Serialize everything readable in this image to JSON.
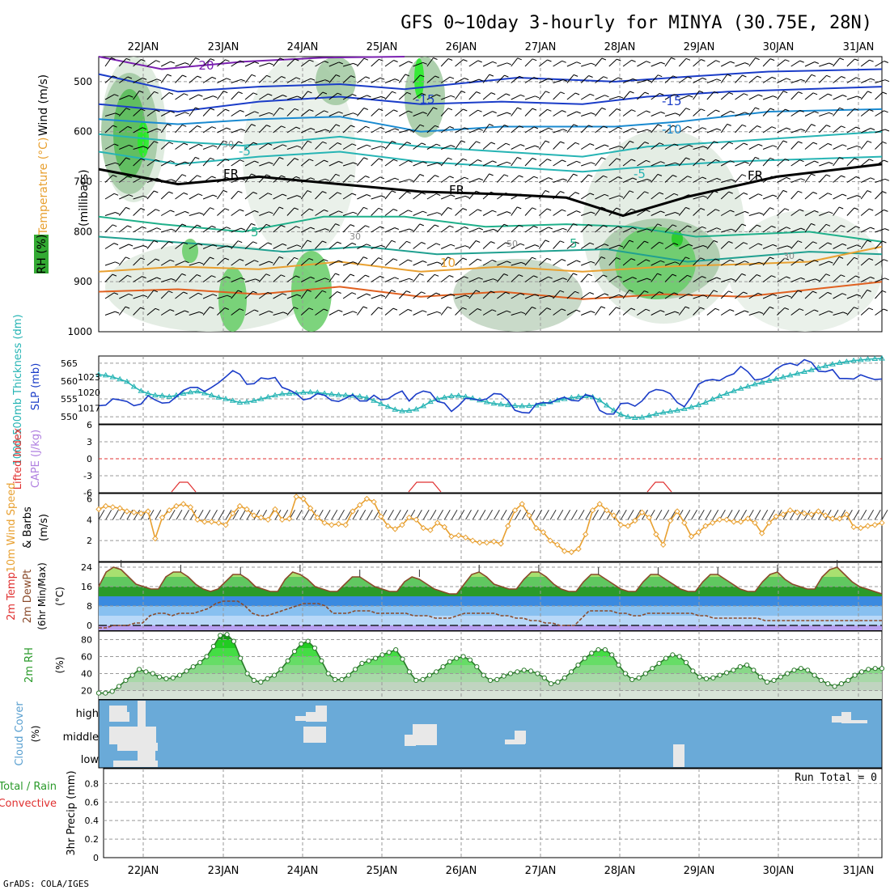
{
  "title": "GFS 0~10day 3-hourly for MINYA (30.75E, 28N)",
  "footer": "GrADS: COLA/IGES",
  "run_total_label": "Run Total = 0",
  "colors": {
    "blue": "#1a3cc8",
    "cyan": "#26b4b4",
    "orange": "#e8a030",
    "red": "#e03030",
    "green": "#2a9a2a",
    "purple": "#b080e0",
    "brown": "#8a4a2a",
    "cloudbg": "#6aaad8"
  },
  "chart_data": [
    {
      "panel": "upper-air",
      "type": "heatmap",
      "title": "",
      "ylabel_parts": [
        "RH (%)",
        "Temperature (°C)",
        "Wind (m/s)"
      ],
      "ylabel_units": "(millibars)",
      "y_ticks": [
        "500",
        "600",
        "700",
        "800",
        "900",
        "1000"
      ],
      "ylim": [
        450,
        1000
      ],
      "x_ticks": [
        "22JAN",
        "23JAN",
        "24JAN",
        "25JAN",
        "26JAN",
        "27JAN",
        "28JAN",
        "29JAN",
        "30JAN",
        "31JAN"
      ],
      "contour_labels": [
        "-20",
        "-15",
        "-15",
        "-10",
        "-5",
        "-5",
        "FR",
        "FR",
        "FR",
        "5",
        "5",
        "10",
        "30",
        "30",
        "30",
        "50"
      ],
      "isotherm_legend": [
        "-20",
        "-15",
        "-10",
        "-5",
        "FR",
        "5",
        "10"
      ]
    },
    {
      "panel": "slp-thickness",
      "type": "line",
      "ylabel_left": "1000-500mb Thickness (dm)",
      "ylabel_right": "SLP (mb)",
      "left_ticks": [
        "550",
        "555",
        "560",
        "565"
      ],
      "right_ticks": [
        "1017",
        "1020",
        "1023"
      ],
      "series": [
        {
          "name": "SLP (mb)",
          "values": [
            1017.5,
            1017.6,
            1018.8,
            1018.6,
            1018.3,
            1017.5,
            1017.8,
            1019.4,
            1018.6,
            1018.0,
            1018.1,
            1019.2,
            1020.4,
            1021.0,
            1021.0,
            1020.2,
            1021.0,
            1021.9,
            1023.0,
            1024.2,
            1023.5,
            1021.6,
            1021.7,
            1022.8,
            1022.6,
            1022.9,
            1021.0,
            1020.5,
            1019.8,
            1018.6,
            1018.9,
            1019.8,
            1019.5,
            1018.5,
            1018.3,
            1018.9,
            1019.6,
            1018.4,
            1018.4,
            1019.5,
            1018.6,
            1018.8,
            1019.7,
            1020.3,
            1018.4,
            1019.7,
            1020.3,
            1020.0,
            1018.3,
            1018.0,
            1016.4,
            1017.5,
            1018.9,
            1018.8,
            1018.5,
            1018.8,
            1019.8,
            1019.7,
            1018.5,
            1016.6,
            1016.2,
            1016.1,
            1017.8,
            1018.1,
            1018.0,
            1018.7,
            1019.1,
            1018.5,
            1018.4,
            1019.6,
            1019.3,
            1016.6,
            1015.9,
            1015.9,
            1017.9,
            1018.0,
            1017.4,
            1018.4,
            1020.0,
            1020.6,
            1020.4,
            1019.8,
            1018.1,
            1017.3,
            1019.2,
            1021.6,
            1022.3,
            1022.5,
            1022.3,
            1023.1,
            1023.6,
            1025.0,
            1024.0,
            1022.4,
            1022.6,
            1023.2,
            1024.5,
            1025.3,
            1025.6,
            1025.2,
            1026.3,
            1025.8,
            1024.1,
            1024.0,
            1024.4,
            1022.7,
            1022.7,
            1022.6,
            1023.4,
            1022.9,
            1022.5,
            1022.6
          ]
        },
        {
          "name": "1000-500mb Thickness (dm)",
          "values": [
            561.8,
            561.6,
            561.1,
            560.5,
            559.8,
            558.4,
            557.2,
            556.5,
            556.0,
            555.9,
            555.6,
            556.0,
            556.5,
            556.9,
            557.1,
            556.6,
            556.0,
            555.4,
            555.0,
            554.5,
            554.0,
            554.1,
            554.5,
            555.0,
            555.5,
            556.0,
            556.4,
            556.5,
            556.6,
            556.8,
            556.9,
            556.8,
            556.5,
            556.3,
            556.1,
            556.0,
            555.9,
            555.7,
            555.3,
            554.5,
            553.6,
            552.8,
            552.0,
            551.6,
            551.7,
            552.1,
            553.0,
            554.2,
            555.0,
            555.4,
            555.8,
            555.9,
            555.6,
            555.2,
            554.6,
            554.1,
            553.7,
            553.5,
            553.3,
            553.1,
            553.0,
            553.1,
            553.2,
            553.6,
            554.1,
            554.6,
            555.0,
            555.3,
            555.6,
            555.8,
            555.5,
            554.6,
            553.2,
            551.8,
            550.7,
            550.0,
            549.7,
            549.8,
            550.3,
            550.8,
            551.2,
            551.5,
            551.8,
            552.2,
            552.7,
            553.3,
            554.0,
            554.9,
            555.8,
            556.5,
            557.2,
            557.9,
            558.5,
            559.1,
            559.6,
            560.1,
            560.6,
            561.1,
            561.6,
            562.1,
            562.6,
            563.1,
            563.7,
            564.2,
            564.7,
            565.1,
            565.4,
            565.7,
            565.9,
            566.1,
            566.2,
            566.3
          ]
        }
      ]
    },
    {
      "panel": "stability",
      "type": "line",
      "ylabel_parts": [
        "Lifted Index",
        "CAPE (J/kg)"
      ],
      "y_ticks": [
        "6",
        "3",
        "0",
        "-3",
        "-6"
      ],
      "ylim": [
        -6,
        6
      ]
    },
    {
      "panel": "wind10m",
      "type": "line",
      "ylabel_parts": [
        "10m Wind Speed",
        "& Barbs"
      ],
      "ylabel_units": "(m/s)",
      "y_ticks": [
        "2",
        "4",
        "6"
      ],
      "ylim": [
        0,
        6.5
      ],
      "series": [
        {
          "name": "10m wind speed (m/s)",
          "values": [
            5.0,
            5.3,
            5.2,
            5.1,
            4.8,
            4.7,
            4.6,
            4.8,
            2.2,
            4.2,
            4.9,
            5.3,
            5.5,
            5.2,
            4.0,
            3.8,
            3.8,
            3.7,
            3.5,
            4.6,
            5.3,
            5.0,
            4.4,
            4.2,
            4.0,
            5.0,
            4.0,
            4.1,
            6.2,
            6.0,
            5.1,
            4.2,
            3.7,
            3.5,
            3.6,
            3.5,
            4.8,
            5.4,
            6.0,
            5.7,
            4.3,
            3.4,
            3.1,
            3.5,
            4.2,
            4.0,
            3.2,
            3.0,
            3.7,
            3.3,
            2.4,
            2.5,
            2.3,
            2.0,
            1.8,
            1.8,
            1.9,
            1.7,
            3.4,
            4.9,
            5.5,
            4.4,
            3.2,
            2.8,
            2.0,
            1.6,
            1.0,
            0.9,
            1.2,
            2.6,
            4.9,
            5.5,
            4.9,
            4.4,
            3.5,
            3.4,
            3.9,
            4.7,
            4.2,
            2.6,
            1.6,
            3.9,
            4.8,
            3.7,
            2.4,
            2.8,
            3.4,
            3.7,
            4.0,
            4.0,
            3.8,
            3.8,
            4.1,
            3.7,
            2.7,
            3.7,
            4.3,
            4.5,
            4.9,
            4.7,
            4.6,
            4.5,
            4.8,
            4.4,
            4.1,
            4.1,
            4.5,
            3.3,
            3.2,
            3.4,
            3.5,
            3.7
          ]
        }
      ]
    },
    {
      "panel": "temp2m",
      "type": "area",
      "ylabel_parts": [
        "2m Temp",
        "2m DewPt",
        "(6hr Min/Max)"
      ],
      "ylabel_units": "(°C)",
      "y_ticks": [
        "0",
        "8",
        "16",
        "24"
      ],
      "ylim": [
        -2,
        26
      ],
      "series": [
        {
          "name": "2m Temp (°C)",
          "values": [
            16,
            22,
            24,
            23,
            20,
            17,
            16,
            15,
            15,
            20,
            22,
            22,
            20,
            17,
            15,
            14,
            15,
            18,
            21,
            21,
            19,
            16,
            15,
            14,
            14,
            19,
            22,
            21,
            19,
            16,
            15,
            14,
            14,
            17,
            20,
            20,
            18,
            16,
            15,
            14,
            14,
            18,
            20,
            19,
            17,
            15,
            14,
            13,
            13,
            17,
            21,
            22,
            20,
            17,
            16,
            15,
            15,
            19,
            22,
            22,
            20,
            17,
            15,
            14,
            14,
            18,
            21,
            21,
            19,
            17,
            15,
            14,
            14,
            18,
            21,
            21,
            19,
            17,
            15,
            14,
            14,
            18,
            21,
            21,
            19,
            17,
            15,
            14,
            14,
            18,
            21,
            22,
            19,
            17,
            16,
            15,
            15,
            20,
            23,
            24,
            21,
            18,
            16,
            15,
            14,
            13
          ]
        },
        {
          "name": "2m DewPt (°C)",
          "values": [
            -1,
            -1,
            0,
            0,
            0,
            1,
            1,
            4,
            5,
            5,
            4,
            5,
            5,
            5,
            6,
            7,
            9,
            10,
            10,
            10,
            8,
            5,
            4,
            4,
            5,
            6,
            7,
            8,
            9,
            9,
            9,
            8,
            5,
            5,
            5,
            6,
            6,
            6,
            5,
            5,
            5,
            5,
            5,
            4,
            4,
            4,
            3,
            3,
            3,
            4,
            5,
            5,
            5,
            5,
            5,
            4,
            4,
            3,
            3,
            2,
            2,
            1,
            1,
            0,
            0,
            0,
            3,
            6,
            6,
            6,
            6,
            5,
            5,
            4,
            4,
            5,
            5,
            5,
            5,
            5,
            5,
            5,
            4,
            4,
            3,
            3,
            3,
            3,
            3,
            3,
            3,
            2,
            2,
            2,
            2,
            2,
            2,
            2,
            2,
            2,
            2,
            2,
            2,
            2,
            2,
            2,
            2,
            2
          ]
        }
      ]
    },
    {
      "panel": "rh2m",
      "type": "area",
      "ylabel": "2m RH",
      "ylabel_units": "(%)",
      "y_ticks": [
        "20",
        "40",
        "60",
        "80"
      ],
      "ylim": [
        10,
        90
      ],
      "series": [
        {
          "name": "2m RH (%)",
          "values": [
            17,
            17,
            19,
            25,
            32,
            38,
            45,
            42,
            40,
            36,
            34,
            35,
            38,
            43,
            48,
            53,
            60,
            72,
            85,
            86,
            78,
            58,
            40,
            32,
            30,
            34,
            38,
            45,
            55,
            66,
            75,
            78,
            70,
            55,
            40,
            33,
            33,
            38,
            45,
            52,
            55,
            58,
            62,
            65,
            68,
            57,
            42,
            32,
            33,
            38,
            42,
            48,
            54,
            58,
            60,
            56,
            48,
            38,
            32,
            33,
            37,
            40,
            42,
            44,
            43,
            40,
            35,
            28,
            30,
            35,
            42,
            50,
            58,
            64,
            68,
            68,
            62,
            50,
            40,
            33,
            35,
            40,
            46,
            52,
            58,
            62,
            60,
            53,
            43,
            36,
            34,
            35,
            38,
            41,
            44,
            48,
            50,
            44,
            36,
            30,
            32,
            36,
            40,
            44,
            46,
            44,
            38,
            32,
            28,
            25,
            28,
            32,
            38,
            42,
            45,
            46,
            46
          ]
        }
      ]
    },
    {
      "panel": "cloud",
      "type": "bar",
      "ylabel": "Cloud Cover",
      "ylabel_units": "(%)",
      "levels": [
        "high",
        "middle",
        "low"
      ]
    },
    {
      "panel": "precip",
      "type": "bar",
      "ylabel_parts": [
        "Total / Rain",
        "Convective"
      ],
      "ylabel_units": "3hr Precip (mm)",
      "y_ticks": [
        "0",
        "0.2",
        "0.4",
        "0.6",
        "0.8"
      ],
      "ylim": [
        0,
        0.96
      ],
      "values": [],
      "x_ticks": [
        "22JAN",
        "23JAN",
        "24JAN",
        "25JAN",
        "26JAN",
        "27JAN",
        "28JAN",
        "29JAN",
        "30JAN",
        "31JAN"
      ]
    }
  ]
}
